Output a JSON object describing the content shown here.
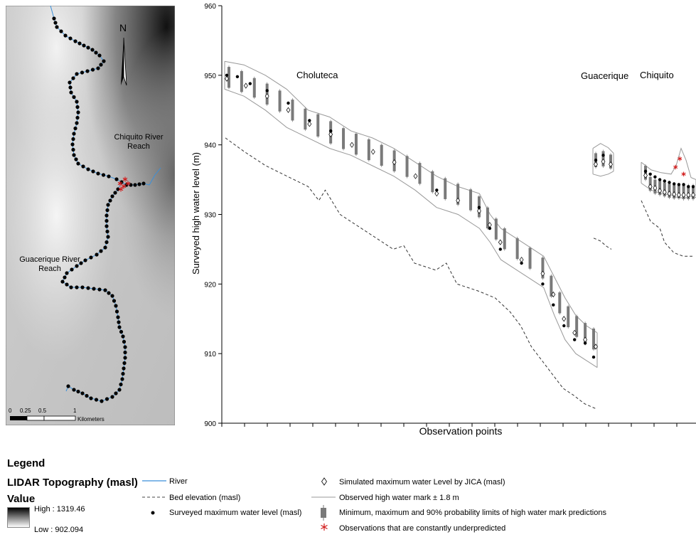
{
  "map": {
    "north": "N",
    "chiquito_label": [
      "Chiquito River",
      "Reach"
    ],
    "guacerique_label": [
      "Guacerique River",
      "Reach"
    ],
    "scale_ticks": [
      "0",
      "0.25",
      "0.5",
      "1"
    ],
    "scale_unit": "Kilometers",
    "colors": {
      "relief_dark": "#1a1a1a",
      "relief_light": "#f2f2f2",
      "river": "#3a8fd9",
      "obs": "#000000",
      "underpredicted": "#d11a1a"
    }
  },
  "chart_data": {
    "type": "scatter",
    "ylabel": "Surveyed high water level (m)",
    "xlabel": "Observation points",
    "ylim": [
      900,
      960
    ],
    "yticks": [
      900,
      910,
      920,
      930,
      940,
      950,
      960
    ],
    "reach_labels": [
      "Choluteca",
      "Guacerique",
      "Chiquito"
    ],
    "reaches": [
      {
        "name": "Choluteca",
        "x": [
          1,
          104
        ],
        "surveyed": [
          [
            1,
            950
          ],
          [
            6,
            949.8
          ],
          [
            12,
            948.8
          ],
          [
            20,
            947.8
          ],
          [
            30,
            946
          ],
          [
            40,
            943.5
          ],
          [
            50,
            942
          ],
          [
            60,
            940
          ],
          [
            70,
            939
          ],
          [
            80,
            937.5
          ],
          [
            90,
            935.5
          ],
          [
            100,
            933.5
          ],
          [
            110,
            932
          ],
          [
            120,
            931
          ],
          [
            125,
            928
          ],
          [
            130,
            925
          ],
          [
            140,
            923
          ],
          [
            150,
            920
          ],
          [
            155,
            917
          ],
          [
            160,
            914
          ],
          [
            165,
            912
          ],
          [
            170,
            911.5
          ],
          [
            174,
            909.5
          ]
        ],
        "simulated": [
          [
            1,
            949.5
          ],
          [
            10,
            948.5
          ],
          [
            20,
            947
          ],
          [
            30,
            945
          ],
          [
            40,
            943
          ],
          [
            50,
            941.5
          ],
          [
            60,
            940
          ],
          [
            70,
            939
          ],
          [
            80,
            937.5
          ],
          [
            90,
            935.5
          ],
          [
            100,
            933
          ],
          [
            110,
            932
          ],
          [
            120,
            930.5
          ],
          [
            125,
            928.5
          ],
          [
            130,
            926
          ],
          [
            140,
            923.5
          ],
          [
            150,
            921.5
          ],
          [
            155,
            918.5
          ],
          [
            160,
            915
          ],
          [
            165,
            913
          ],
          [
            170,
            912
          ],
          [
            175,
            911
          ]
        ],
        "band_upper": [
          [
            1,
            952
          ],
          [
            10,
            951.5
          ],
          [
            20,
            950
          ],
          [
            30,
            948
          ],
          [
            40,
            945
          ],
          [
            50,
            944
          ],
          [
            60,
            942
          ],
          [
            70,
            941
          ],
          [
            80,
            939.5
          ],
          [
            90,
            937.5
          ],
          [
            100,
            935.5
          ],
          [
            110,
            934
          ],
          [
            120,
            933
          ],
          [
            125,
            930
          ],
          [
            130,
            928
          ],
          [
            140,
            926
          ],
          [
            150,
            924
          ],
          [
            155,
            921
          ],
          [
            160,
            918
          ],
          [
            165,
            915.5
          ],
          [
            170,
            914
          ],
          [
            175,
            913
          ]
        ],
        "band_lower": [
          [
            1,
            948
          ],
          [
            10,
            947
          ],
          [
            20,
            945
          ],
          [
            30,
            942.5
          ],
          [
            40,
            941
          ],
          [
            50,
            939.5
          ],
          [
            60,
            938.5
          ],
          [
            70,
            937
          ],
          [
            80,
            935.5
          ],
          [
            90,
            933.5
          ],
          [
            100,
            931
          ],
          [
            110,
            930
          ],
          [
            120,
            928
          ],
          [
            125,
            926
          ],
          [
            130,
            923.5
          ],
          [
            140,
            921.5
          ],
          [
            150,
            919.5
          ],
          [
            155,
            915.5
          ],
          [
            160,
            912
          ],
          [
            165,
            910
          ],
          [
            170,
            909
          ],
          [
            175,
            908
          ]
        ],
        "box_bars": [
          [
            2,
            948.2,
            951.2
          ],
          [
            8,
            947.6,
            950.6
          ],
          [
            14,
            946.8,
            949.6
          ],
          [
            20,
            945.8,
            948.8
          ],
          [
            26,
            944.8,
            947.8
          ],
          [
            32,
            943.5,
            946.5
          ],
          [
            38,
            942.2,
            945.2
          ],
          [
            44,
            941.2,
            944.4
          ],
          [
            50,
            940.2,
            943.4
          ],
          [
            56,
            939.4,
            942.4
          ],
          [
            62,
            938.6,
            941.6
          ],
          [
            68,
            937.8,
            940.8
          ],
          [
            74,
            937,
            940
          ],
          [
            80,
            936.2,
            939.2
          ],
          [
            86,
            935.4,
            938.4
          ],
          [
            92,
            934.4,
            937.4
          ],
          [
            98,
            933.2,
            936.2
          ],
          [
            104,
            932.2,
            935.2
          ],
          [
            110,
            931.4,
            934.4
          ],
          [
            116,
            930.6,
            933.6
          ],
          [
            120,
            929.6,
            932.6
          ],
          [
            124,
            928,
            931
          ],
          [
            128,
            926.4,
            929.4
          ],
          [
            132,
            925,
            928
          ],
          [
            138,
            923.6,
            926.6
          ],
          [
            144,
            922.2,
            925.2
          ],
          [
            150,
            920.8,
            923.8
          ],
          [
            154,
            918.2,
            921.2
          ],
          [
            158,
            915.8,
            918.8
          ],
          [
            162,
            913.8,
            916.8
          ],
          [
            166,
            912.4,
            915.4
          ],
          [
            170,
            911.4,
            914.4
          ],
          [
            174,
            910.6,
            913.6
          ]
        ],
        "bed": [
          [
            1,
            941
          ],
          [
            10,
            939
          ],
          [
            20,
            937
          ],
          [
            30,
            935.5
          ],
          [
            40,
            934
          ],
          [
            45,
            932
          ],
          [
            48,
            933.5
          ],
          [
            55,
            930
          ],
          [
            60,
            929
          ],
          [
            70,
            927
          ],
          [
            80,
            925
          ],
          [
            85,
            925.5
          ],
          [
            90,
            923
          ],
          [
            100,
            922
          ],
          [
            105,
            923
          ],
          [
            110,
            920
          ],
          [
            120,
            919
          ],
          [
            128,
            918
          ],
          [
            135,
            916
          ],
          [
            140,
            914
          ],
          [
            145,
            911
          ],
          [
            150,
            909
          ],
          [
            155,
            907
          ],
          [
            160,
            905
          ],
          [
            165,
            904
          ],
          [
            170,
            902.8
          ],
          [
            176,
            902
          ]
        ]
      },
      {
        "name": "Guacerique",
        "surveyed": [
          [
            1,
            937.8
          ],
          [
            2,
            938.5
          ],
          [
            3,
            937.2
          ]
        ],
        "simulated": [
          [
            1,
            937.2
          ],
          [
            2,
            937.6
          ],
          [
            3,
            937.2
          ]
        ],
        "band_upper": [
          [
            0.5,
            939.5
          ],
          [
            1.5,
            940.2
          ],
          [
            2.5,
            939.6
          ],
          [
            3.2,
            938.8
          ]
        ],
        "band_lower": [
          [
            0.5,
            935.8
          ],
          [
            1.5,
            935.5
          ],
          [
            2.5,
            935.8
          ],
          [
            3.2,
            936.2
          ]
        ],
        "box_bars": [
          [
            1,
            936.8,
            938.8
          ],
          [
            2,
            936.9,
            939.1
          ],
          [
            3,
            936.6,
            938.6
          ]
        ],
        "bed": [
          [
            0.5,
            926.6
          ],
          [
            1.5,
            926.2
          ],
          [
            2.5,
            925.4
          ],
          [
            3.2,
            925
          ]
        ]
      },
      {
        "name": "Chiquito",
        "surveyed": [
          [
            1,
            936.2
          ],
          [
            2,
            935.8
          ],
          [
            3,
            935.4
          ],
          [
            4,
            935
          ],
          [
            5,
            934.8
          ],
          [
            6,
            934.6
          ],
          [
            7,
            934.4
          ],
          [
            8,
            934.3
          ],
          [
            9,
            934.3
          ],
          [
            10,
            934
          ],
          [
            11,
            934
          ]
        ],
        "simulated": [
          [
            1,
            935.6
          ],
          [
            2,
            934
          ],
          [
            3,
            933.8
          ],
          [
            4,
            933.4
          ],
          [
            5,
            933.2
          ],
          [
            6,
            933
          ],
          [
            7,
            932.9
          ],
          [
            8,
            932.8
          ],
          [
            9,
            932.8
          ],
          [
            10,
            932.8
          ],
          [
            11,
            932.8
          ]
        ],
        "band_upper": [
          [
            0,
            937.5
          ],
          [
            2,
            936.4
          ],
          [
            4,
            936
          ],
          [
            6,
            935.8
          ],
          [
            7,
            937
          ],
          [
            8,
            939.5
          ],
          [
            9,
            937.8
          ],
          [
            10,
            935.3
          ],
          [
            11,
            935
          ]
        ],
        "band_lower": [
          [
            0,
            934.5
          ],
          [
            2,
            933.5
          ],
          [
            4,
            933
          ],
          [
            6,
            932.8
          ],
          [
            7,
            932.5
          ],
          [
            8,
            932.4
          ],
          [
            9,
            932.4
          ],
          [
            10,
            932.6
          ],
          [
            11,
            932.4
          ]
        ],
        "box_bars": [
          [
            1,
            935,
            937
          ],
          [
            2,
            933.4,
            935.4
          ],
          [
            3,
            933,
            935
          ],
          [
            4,
            932.8,
            934.8
          ],
          [
            5,
            932.6,
            934.6
          ],
          [
            6,
            932.4,
            934.4
          ],
          [
            7,
            932.3,
            934.3
          ],
          [
            8,
            932.3,
            934.3
          ],
          [
            9,
            932.2,
            934.2
          ],
          [
            10,
            932.2,
            934.2
          ],
          [
            11,
            932.2,
            934.2
          ]
        ],
        "underpredicted": [
          [
            7.3,
            936.8
          ],
          [
            8.2,
            938
          ],
          [
            9,
            935.8
          ]
        ],
        "bed": [
          [
            0,
            932
          ],
          [
            2,
            929
          ],
          [
            4,
            928
          ],
          [
            5,
            926
          ],
          [
            7,
            924.5
          ],
          [
            9,
            924
          ],
          [
            11,
            924
          ]
        ]
      }
    ]
  },
  "legend": {
    "title": "Legend",
    "topography": "LIDAR Topography (masl)",
    "value": "Value",
    "high": "High : 1319.46",
    "low": "Low : 902.094",
    "items": {
      "river": "River",
      "bed": "Bed elevation (masl)",
      "surveyed": "Surveyed maximum water level (masl)",
      "simulated": "Simulated maximum water Level by JICA (masl)",
      "observed": "Observed high water mark ± 1.8 m",
      "limits": "Minimum, maximum and 90% probability limits of high water mark predictions",
      "underpredicted": "Observations that are constantly underpredicted"
    }
  }
}
